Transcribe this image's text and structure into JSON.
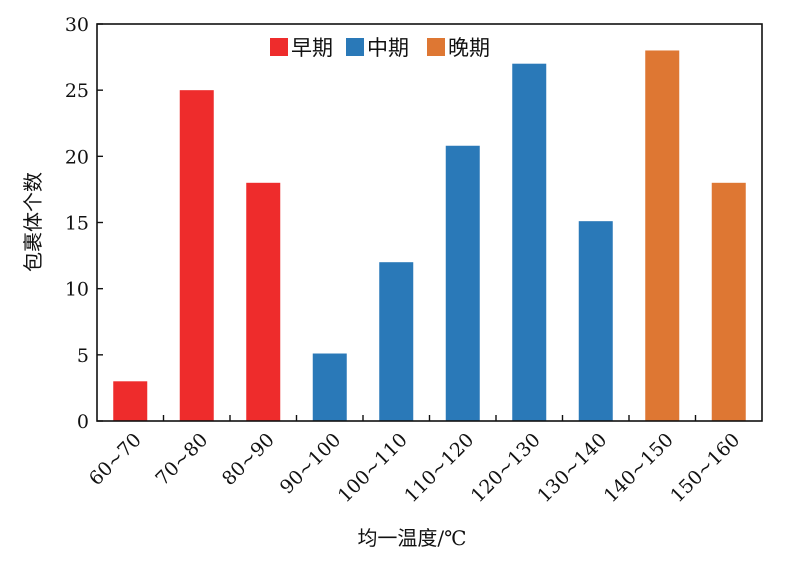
{
  "chart_data": {
    "type": "bar",
    "xlabel": "均一温度/℃",
    "ylabel": "包裹体个数",
    "ylim": [
      0,
      30
    ],
    "yticks": [
      0,
      5,
      10,
      15,
      20,
      25,
      30
    ],
    "grid": false,
    "legend_position": "top-center",
    "categories": [
      "60~70",
      "70~80",
      "80~90",
      "90~100",
      "100~110",
      "110~120",
      "120~130",
      "130~140",
      "140~150",
      "150~160"
    ],
    "series": [
      {
        "name": "早期",
        "color": "#ee2c2c",
        "values": [
          3,
          25,
          18,
          null,
          null,
          null,
          null,
          null,
          null,
          null
        ]
      },
      {
        "name": "中期",
        "color": "#2a79b8",
        "values": [
          null,
          null,
          null,
          5.1,
          12,
          20.8,
          27,
          15.1,
          null,
          null
        ]
      },
      {
        "name": "晚期",
        "color": "#de7733",
        "values": [
          null,
          null,
          null,
          null,
          null,
          null,
          null,
          null,
          28,
          18
        ]
      }
    ]
  }
}
